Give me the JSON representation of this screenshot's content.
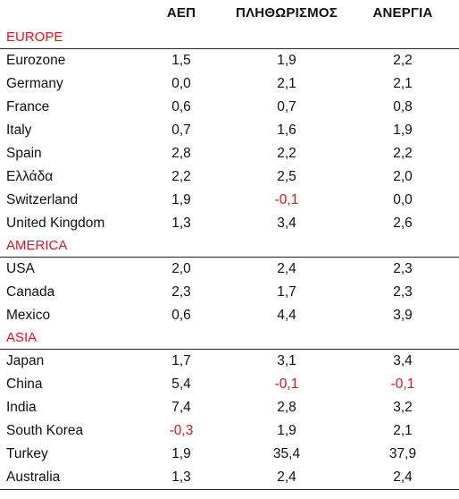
{
  "headers": {
    "gdp": "ΑΕΠ",
    "inflation": "ΠΛΗΘΩΡΙΣΜΟΣ",
    "unemployment": "ΑΝΕΡΓΙΑ"
  },
  "colors": {
    "region": "#e3121b",
    "negative": "#e3121b"
  },
  "sections": [
    {
      "title": "EUROPE",
      "rows": [
        {
          "name": "Eurozone",
          "gdp": "1,5",
          "inflation": "1,9",
          "unemployment": "2,2"
        },
        {
          "name": "Germany",
          "gdp": "0,0",
          "inflation": "2,1",
          "unemployment": "2,1"
        },
        {
          "name": "France",
          "gdp": "0,6",
          "inflation": "0,7",
          "unemployment": "0,8"
        },
        {
          "name": "Italy",
          "gdp": "0,7",
          "inflation": "1,6",
          "unemployment": "1,9"
        },
        {
          "name": "Spain",
          "gdp": "2,8",
          "inflation": "2,2",
          "unemployment": "2,2"
        },
        {
          "name": "Ελλάδα",
          "gdp": "2,2",
          "inflation": "2,5",
          "unemployment": "2,0"
        },
        {
          "name": "Switzerland",
          "gdp": "1,9",
          "inflation": "-0,1",
          "unemployment": "0,0"
        },
        {
          "name": "United Kingdom",
          "gdp": "1,3",
          "inflation": "3,4",
          "unemployment": "2,6"
        }
      ]
    },
    {
      "title": "AMERICA",
      "rows": [
        {
          "name": "USA",
          "gdp": "2,0",
          "inflation": "2,4",
          "unemployment": "2,3"
        },
        {
          "name": "Canada",
          "gdp": "2,3",
          "inflation": "1,7",
          "unemployment": "2,3"
        },
        {
          "name": "Mexico",
          "gdp": "0,6",
          "inflation": "4,4",
          "unemployment": "3,9"
        }
      ]
    },
    {
      "title": "ASIA",
      "rows": [
        {
          "name": "Japan",
          "gdp": "1,7",
          "inflation": "3,1",
          "unemployment": "3,4"
        },
        {
          "name": "China",
          "gdp": "5,4",
          "inflation": "-0,1",
          "unemployment": "-0,1"
        },
        {
          "name": "India",
          "gdp": "7,4",
          "inflation": "2,8",
          "unemployment": "3,2"
        },
        {
          "name": "South Korea",
          "gdp": "-0,3",
          "inflation": "1,9",
          "unemployment": "2,1"
        },
        {
          "name": "Turkey",
          "gdp": "1,9",
          "inflation": "35,4",
          "unemployment": "37,9"
        },
        {
          "name": "Australia",
          "gdp": "1,3",
          "inflation": "2,4",
          "unemployment": "2,4"
        }
      ]
    }
  ]
}
